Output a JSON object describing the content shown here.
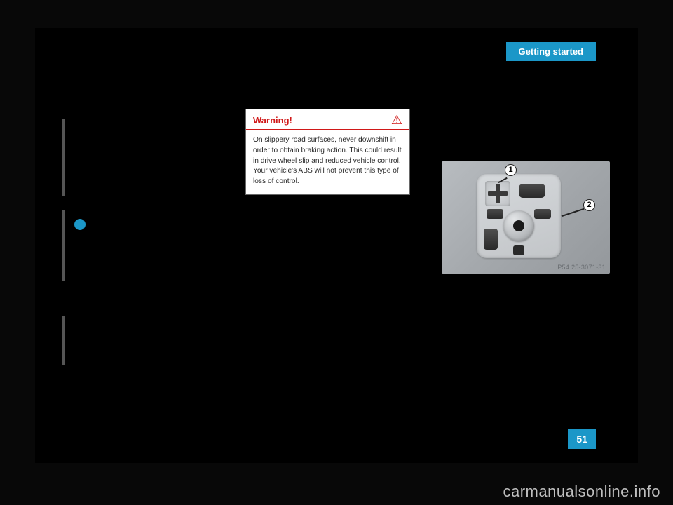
{
  "header": {
    "tab_label": "Getting started"
  },
  "warning": {
    "title": "Warning!",
    "body": "On slippery road surfaces, never downshift in order to obtain braking action. This could result in drive wheel slip and reduced vehicle control. Your vehicle's ABS will not prevent this type of loss of control.",
    "title_color": "#d01818",
    "box_bg": "#ffffff",
    "body_color": "#2a2a2a"
  },
  "control_image": {
    "callouts": {
      "c1": "1",
      "c2": "2"
    },
    "label": "P54.25-3071-31",
    "panel_bg_from": "#b8bcc0",
    "panel_bg_to": "#94989c"
  },
  "page_number": "51",
  "watermark": "carmanualsonline.info",
  "colors": {
    "accent": "#1b97c8",
    "page_bg": "#000000",
    "body_bg": "#080808",
    "sidebar_line": "#555555"
  }
}
